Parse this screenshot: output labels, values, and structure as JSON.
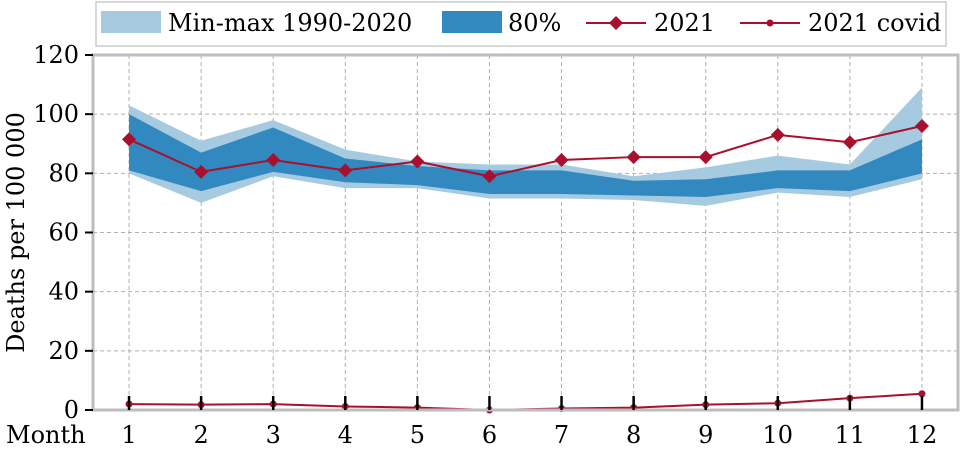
{
  "chart_data": {
    "type": "area",
    "xlabel": "Month",
    "ylabel": "Deaths per 100 000",
    "x": [
      1,
      2,
      3,
      4,
      5,
      6,
      7,
      8,
      9,
      10,
      11,
      12
    ],
    "xlim": [
      0.5,
      12.5
    ],
    "ylim": [
      0,
      120
    ],
    "yticks": [
      0,
      20,
      40,
      60,
      80,
      100,
      120
    ],
    "grid": true,
    "legend_position": "top",
    "series": [
      {
        "name": "Min-max 1990-2020",
        "kind": "band",
        "color": "#a6cbe1",
        "lower": [
          80,
          70,
          79,
          75,
          75,
          71.5,
          71.5,
          71,
          69,
          73.5,
          72,
          78
        ],
        "upper": [
          103,
          91,
          98,
          88,
          84,
          83,
          83,
          79,
          82,
          86,
          83,
          109
        ]
      },
      {
        "name": "80%",
        "kind": "band",
        "color": "#3289bf",
        "lower": [
          81,
          74,
          80.5,
          77,
          76,
          73,
          73,
          72.5,
          72,
          75,
          74,
          80
        ],
        "upper": [
          100,
          87,
          95.5,
          85,
          82.5,
          81,
          81,
          77.5,
          78,
          81,
          81,
          91.5
        ]
      },
      {
        "name": "2021",
        "kind": "line",
        "marker": "diamond",
        "color": "#a8102e",
        "values": [
          91.5,
          80.5,
          84.5,
          81,
          84,
          79,
          84.5,
          85.5,
          85.5,
          93,
          90.5,
          96
        ]
      },
      {
        "name": "2021 covid",
        "kind": "line",
        "marker": "dot",
        "color": "#a8102e",
        "values": [
          2,
          1.8,
          2,
          1.2,
          0.8,
          0,
          0.5,
          0.8,
          1.8,
          2.3,
          4,
          5.5
        ]
      }
    ]
  }
}
